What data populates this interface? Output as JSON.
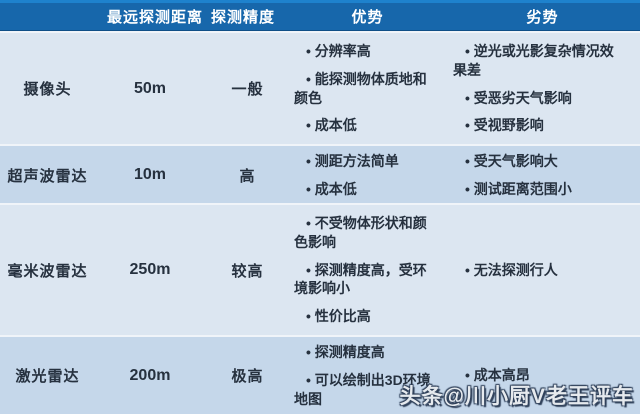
{
  "chart_data": {
    "type": "table",
    "title": "",
    "columns": [
      "",
      "最远探测距离",
      "探测精度",
      "优势",
      "劣势"
    ],
    "rows": [
      {
        "name": "摄像头",
        "distance": "50m",
        "accuracy": "一般",
        "pros": [
          "分辨率高",
          "能探测物体质地和颜色",
          "成本低"
        ],
        "cons": [
          "逆光或光影复杂情况效果差",
          "受恶劣天气影响",
          "受视野影响"
        ]
      },
      {
        "name": "超声波雷达",
        "distance": "10m",
        "accuracy": "高",
        "pros": [
          "测距方法简单",
          "成本低"
        ],
        "cons": [
          "受天气影响大",
          "测试距离范围小"
        ]
      },
      {
        "name": "毫米波雷达",
        "distance": "250m",
        "accuracy": "较高",
        "pros": [
          "不受物体形状和颜色影响",
          "探测精度高，受环境影响小",
          "性价比高"
        ],
        "cons": [
          "无法探测行人"
        ]
      },
      {
        "name": "激光雷达",
        "distance": "200m",
        "accuracy": "极高",
        "pros": [
          "探测精度高",
          "可以绘制出3D环境地图"
        ],
        "cons": [
          "成本高昂"
        ]
      }
    ]
  },
  "watermark": "头条@川小厨V老王评车",
  "colors": {
    "header_bg": "#1767ab",
    "header_top": "#1e82cd",
    "header_edge": "#0f4f87",
    "row_light": "#dce6f1",
    "row_dark": "#c5d7ea",
    "separator": "#f0f4f9",
    "text": "#26313f",
    "watermark_fill": "#e6eaee"
  }
}
